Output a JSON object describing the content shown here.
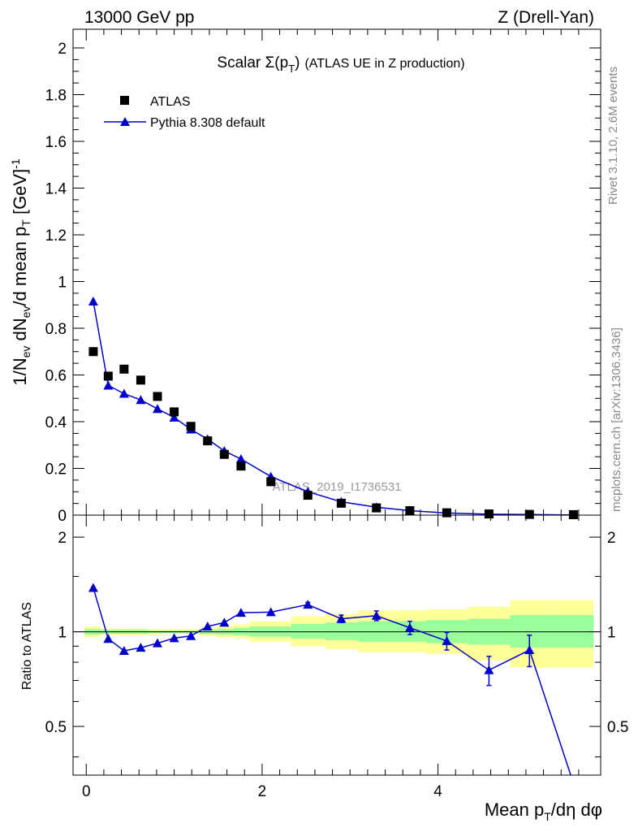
{
  "header": {
    "left": "13000 GeV pp",
    "right": "Z (Drell-Yan)"
  },
  "side": {
    "rivet": "Rivet 3.1.10,  2.6M events",
    "mcplots": "mcplots.cern.ch [arXiv:1306.3436]"
  },
  "watermark": "ATLAS_2019_I1736531",
  "chart_data": [
    {
      "type": "scatter",
      "title_main": "Scalar Σ(p",
      "title_sub": "T",
      "title_end": ")",
      "title_rest": "(ATLAS UE in Z production)",
      "ylabel": "1/N_ev dN_ev/d mean p_T [GeV]^-1",
      "xlim": [
        -0.15,
        5.85
      ],
      "ylim": [
        0,
        2.08
      ],
      "xticks": [
        0,
        2,
        4
      ],
      "yticks": [
        0,
        0.2,
        0.4,
        0.6,
        0.8,
        1,
        1.2,
        1.4,
        1.6,
        1.8,
        2
      ],
      "ytick_labels": [
        "0",
        "0.2",
        "0.4",
        "0.6",
        "0.8",
        "1",
        "1.2",
        "1.4",
        "1.6",
        "1.8",
        "2"
      ],
      "legend_position": "top-left",
      "series": [
        {
          "name": "ATLAS",
          "marker": "square",
          "color": "#000000",
          "x": [
            0.08,
            0.25,
            0.43,
            0.62,
            0.81,
            1.0,
            1.19,
            1.38,
            1.57,
            1.76,
            2.1,
            2.52,
            2.9,
            3.3,
            3.68,
            4.1,
            4.58,
            5.04,
            5.54
          ],
          "y": [
            0.7,
            0.595,
            0.625,
            0.578,
            0.508,
            0.442,
            0.38,
            0.318,
            0.26,
            0.21,
            0.143,
            0.085,
            0.051,
            0.031,
            0.019,
            0.01,
            0.005,
            0.003,
            0.002
          ]
        },
        {
          "name": "Pythia 8.308 default",
          "marker": "triangle",
          "color": "#0000cc",
          "x": [
            0.08,
            0.25,
            0.43,
            0.62,
            0.81,
            1.0,
            1.19,
            1.38,
            1.57,
            1.76,
            2.1,
            2.52,
            2.9,
            3.3,
            3.68,
            4.1,
            4.58,
            5.04,
            5.54
          ],
          "y": [
            0.915,
            0.555,
            0.52,
            0.493,
            0.455,
            0.418,
            0.367,
            0.325,
            0.275,
            0.24,
            0.165,
            0.1,
            0.057,
            0.034,
            0.019,
            0.009,
            0.004,
            0.0025,
            0.0006
          ]
        }
      ]
    },
    {
      "type": "scatter",
      "ylabel": "Ratio to ATLAS",
      "xlabel": "Mean p_T/dη dφ",
      "xlim": [
        -0.15,
        5.85
      ],
      "ylim": [
        0.35,
        2.35
      ],
      "xticks": [
        0,
        2,
        4
      ],
      "xtick_labels": [
        "0",
        "2",
        "4"
      ],
      "yticks": [
        0.5,
        1,
        2
      ],
      "ytick_labels": [
        "0.5",
        "1",
        "2"
      ],
      "ylog": true,
      "bands": {
        "edges": [
          -0.02,
          0.16,
          0.34,
          0.52,
          0.71,
          0.9,
          1.1,
          1.29,
          1.48,
          1.67,
          1.86,
          2.33,
          2.72,
          3.09,
          3.5,
          3.87,
          4.34,
          4.82,
          5.26,
          5.77
        ],
        "green_lo": [
          0.98,
          0.985,
          0.985,
          0.985,
          0.99,
          0.99,
          0.99,
          0.985,
          0.98,
          0.975,
          0.965,
          0.95,
          0.94,
          0.93,
          0.93,
          0.92,
          0.91,
          0.89,
          0.89
        ],
        "green_hi": [
          1.02,
          1.015,
          1.015,
          1.015,
          1.01,
          1.01,
          1.01,
          1.015,
          1.02,
          1.03,
          1.04,
          1.06,
          1.07,
          1.08,
          1.08,
          1.09,
          1.1,
          1.13,
          1.13
        ],
        "yellow_lo": [
          0.96,
          0.975,
          0.975,
          0.975,
          0.98,
          0.985,
          0.985,
          0.97,
          0.96,
          0.955,
          0.93,
          0.9,
          0.88,
          0.86,
          0.86,
          0.85,
          0.81,
          0.77,
          0.77
        ],
        "yellow_hi": [
          1.04,
          1.025,
          1.025,
          1.025,
          1.02,
          1.02,
          1.02,
          1.03,
          1.04,
          1.055,
          1.08,
          1.12,
          1.14,
          1.17,
          1.17,
          1.18,
          1.2,
          1.26,
          1.26
        ]
      },
      "series": [
        {
          "name": "Pythia 8.308 default",
          "color": "#0000cc",
          "x": [
            0.08,
            0.25,
            0.43,
            0.62,
            0.81,
            1.0,
            1.19,
            1.38,
            1.57,
            1.76,
            2.1,
            2.52,
            2.9,
            3.3,
            3.68,
            4.1,
            4.58,
            5.04,
            5.54
          ],
          "y": [
            1.38,
            0.95,
            0.87,
            0.89,
            0.92,
            0.955,
            0.97,
            1.04,
            1.07,
            1.15,
            1.155,
            1.22,
            1.1,
            1.125,
            1.03,
            0.935,
            0.755,
            0.875,
            0.33
          ],
          "err": [
            0,
            0,
            0,
            0,
            0,
            0,
            0,
            0,
            0,
            0,
            0,
            0.02,
            0.03,
            0.04,
            0.05,
            0.06,
            0.08,
            0.1,
            0
          ]
        }
      ]
    }
  ]
}
